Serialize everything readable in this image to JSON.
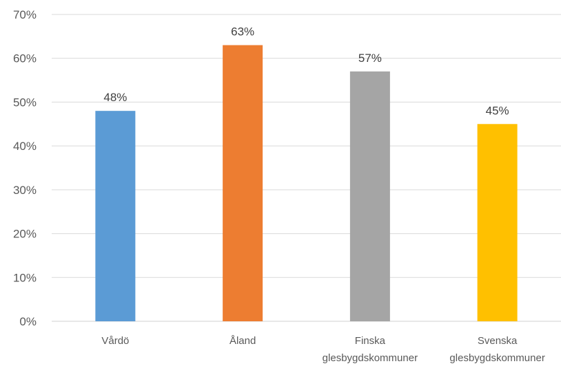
{
  "chart_data": {
    "type": "bar",
    "title": "",
    "xlabel": "",
    "ylabel": "",
    "categories": [
      [
        "Vårdö"
      ],
      [
        "Åland"
      ],
      [
        "Finska",
        "glesbygdskommuner"
      ],
      [
        "Svenska",
        "glesbygdskommuner"
      ]
    ],
    "values": [
      48,
      63,
      57,
      45
    ],
    "data_labels": [
      "48%",
      "63%",
      "57%",
      "45%"
    ],
    "colors": [
      "#5B9BD5",
      "#ED7D31",
      "#A5A5A5",
      "#FFC000"
    ],
    "ylim": [
      0,
      70
    ],
    "yticks": [
      0,
      10,
      20,
      30,
      40,
      50,
      60,
      70
    ],
    "ytick_labels": [
      "0%",
      "10%",
      "20%",
      "30%",
      "40%",
      "50%",
      "60%",
      "70%"
    ],
    "grid": true,
    "legend": "none"
  }
}
